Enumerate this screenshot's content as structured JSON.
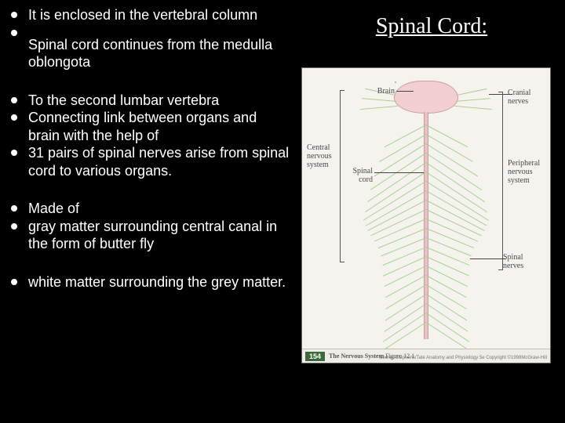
{
  "title": "Spinal Cord:",
  "bullets": {
    "b0": "It is enclosed in the vertebral column",
    "b1": "",
    "b2": "Spinal cord continues from the medulla oblongota",
    "b3": "To the second lumbar vertebra",
    "b4": "Connecting link between organs and brain with the help of",
    "b5": "31 pairs of spinal nerves arise from spinal cord to various organs.",
    "b6": "Made of",
    "b7": "gray matter surrounding central canal in the form of butter fly",
    "b8": " white matter surrounding the grey matter."
  },
  "diagram": {
    "labels": {
      "brain": "Brain",
      "cranial_nerves": "Cranial\nnerves",
      "cns": "Central\nnervous\nsystem",
      "spinal_cord": "Spinal\ncord",
      "pns": "Peripheral\nnervous\nsystem",
      "spinal_nerves": "Spinal\nnerves"
    },
    "fig_number": "154",
    "fig_title": "The Nervous System",
    "fig_sub": "Figure 12.1",
    "copyright": "Seeley/Stephens/Tate Anatomy and Physiology 5e Copyright ©1998McGraw-Hill"
  },
  "style": {
    "bg": "#000000",
    "text": "#ffffff",
    "title_fontsize": 28,
    "bullet_fontsize": 18,
    "diagram_bg": "#f5f3ee",
    "brain_color": "#f4cfd1",
    "cord_color": "#e9c2c4",
    "nerve_color": "#a9cf94",
    "label_color": "#4a4a4a",
    "fignum_bg": "#3a6b3a"
  }
}
